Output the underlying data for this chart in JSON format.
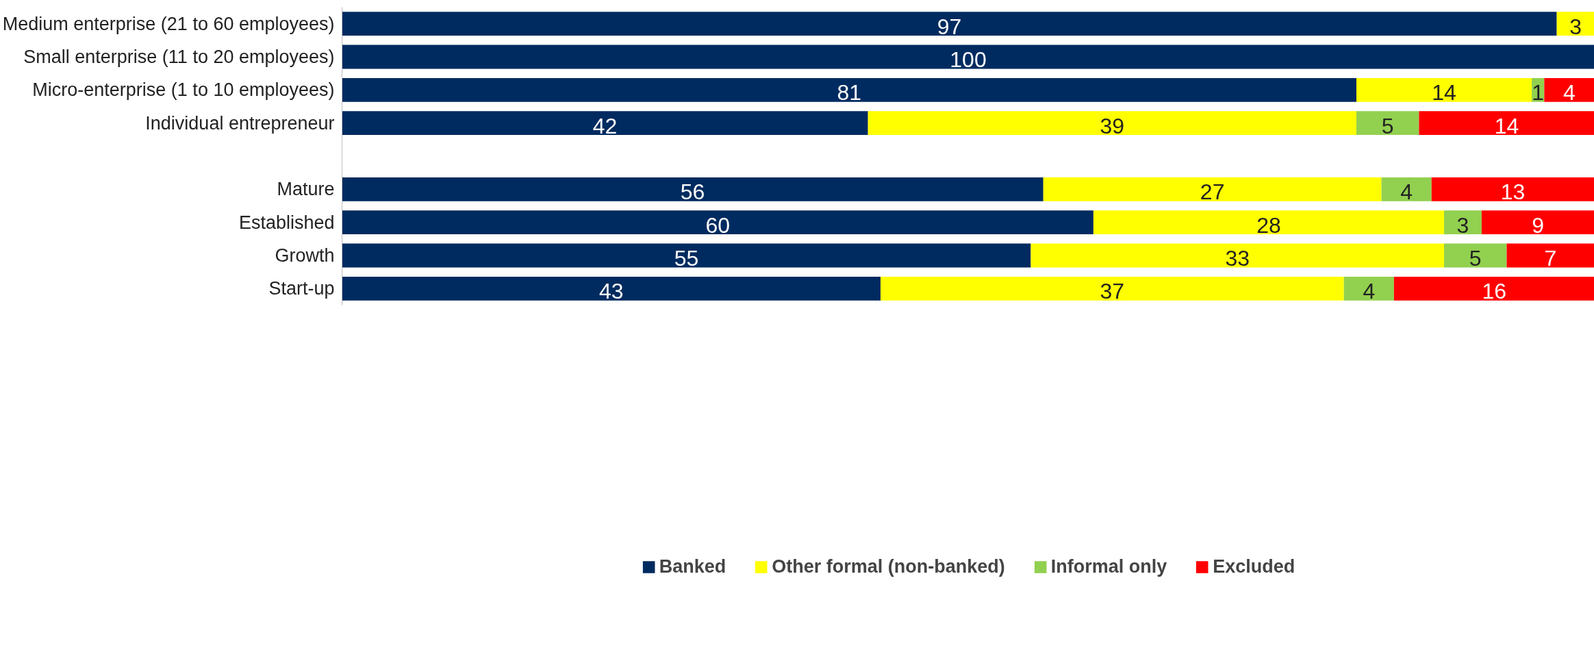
{
  "chart_data": {
    "type": "bar",
    "orientation": "horizontal",
    "stacked": true,
    "data_labels": true,
    "legend": "bottom",
    "grid": false,
    "tick_labels": "y",
    "categories": [
      "Medium enterprise (21 to 60 employees)",
      "Small enterprise (11 to 20 employees)",
      "Micro-enterprise (1 to 10 employees)",
      "Individual entrepreneur",
      null,
      "Mature",
      "Established",
      "Growth",
      "Start-up"
    ],
    "series": [
      {
        "name": "Banked",
        "color": "#002b60",
        "values": [
          97,
          100,
          81,
          42,
          null,
          56,
          60,
          55,
          43
        ]
      },
      {
        "name": "Other formal (non-banked)",
        "color": "#ffff00",
        "values": [
          3,
          null,
          14,
          39,
          null,
          27,
          28,
          33,
          37
        ]
      },
      {
        "name": "Informal only",
        "color": "#92d050",
        "values": [
          null,
          null,
          1,
          5,
          null,
          4,
          3,
          5,
          4
        ]
      },
      {
        "name": "Excluded",
        "color": "#ff0000",
        "values": [
          null,
          null,
          4,
          14,
          null,
          13,
          9,
          7,
          16
        ]
      }
    ]
  }
}
